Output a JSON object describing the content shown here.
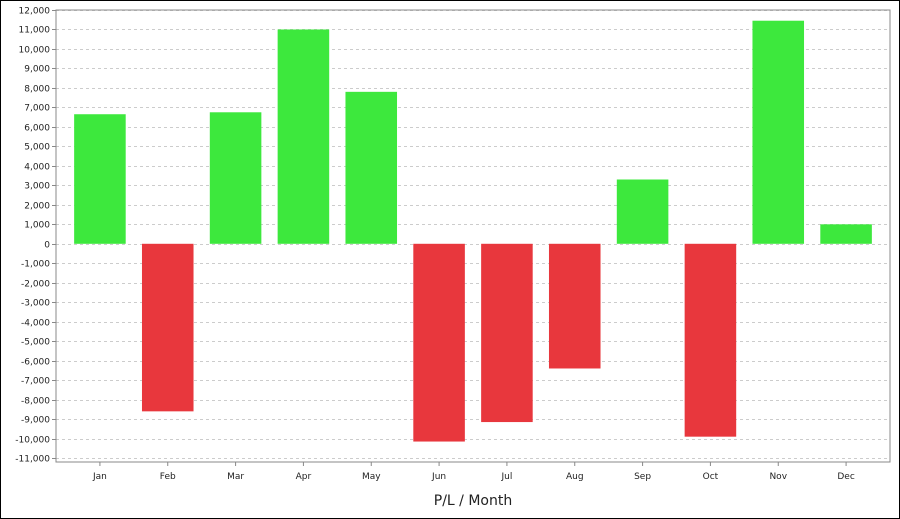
{
  "chart_data": {
    "type": "bar",
    "title": "",
    "xlabel": "P/L / Month",
    "ylabel": "",
    "categories": [
      "Jan",
      "Feb",
      "Mar",
      "Apr",
      "May",
      "Jun",
      "Jul",
      "Aug",
      "Sep",
      "Oct",
      "Nov",
      "Dec"
    ],
    "series": [
      {
        "values": [
          6650,
          -8600,
          6750,
          11000,
          7800,
          -10150,
          -9150,
          -6400,
          3300,
          -9900,
          11450,
          1000
        ]
      }
    ],
    "ylim": [
      -11200,
      12000
    ],
    "yticks": [
      12000,
      11000,
      10000,
      9000,
      8000,
      7000,
      6000,
      5000,
      4000,
      3000,
      2000,
      1000,
      0,
      -1000,
      -2000,
      -3000,
      -4000,
      -5000,
      -6000,
      -7000,
      -8000,
      -9000,
      -10000,
      -11000
    ],
    "ytick_labels": [
      "12,000",
      "11,000",
      "10,000",
      "9,000",
      "8,000",
      "7,000",
      "6,000",
      "5,000",
      "4,000",
      "3,000",
      "2,000",
      "1,000",
      "0",
      "-1,000",
      "-2,000",
      "-3,000",
      "-4,000",
      "-5,000",
      "-6,000",
      "-7,000",
      "-8,000",
      "-9,000",
      "-10,000",
      "-11,000"
    ],
    "grid": true,
    "colors": {
      "positive": "#3de83d",
      "negative": "#e8373d",
      "grid": "#cccccc",
      "axis": "#888888"
    }
  }
}
